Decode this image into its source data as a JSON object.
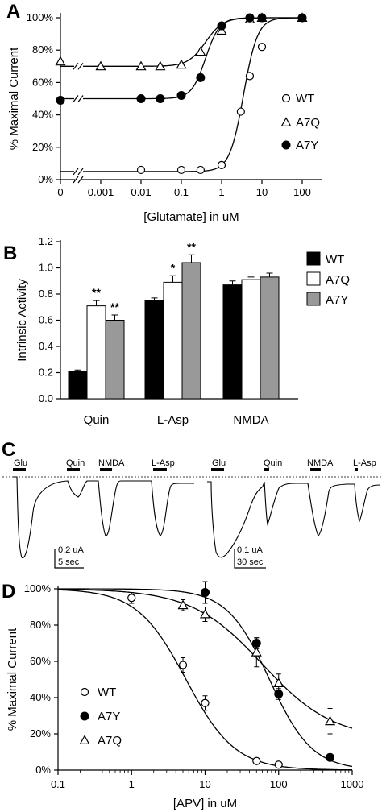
{
  "chart_data": [
    {
      "panel": "A",
      "type": "scatter",
      "xlabel": "[Glutamate] in uM",
      "ylabel": "% Maximal Current",
      "x_scale": "log",
      "x_ticks": [
        "0",
        "0.001",
        "0.01",
        "0.1",
        "1",
        "10",
        "100"
      ],
      "y_ticks": [
        "0%",
        "20%",
        "40%",
        "60%",
        "80%",
        "100%"
      ],
      "ylim": [
        0,
        100
      ],
      "legend_position": "right",
      "series": [
        {
          "name": "WT",
          "marker": "open-circle",
          "x": [
            0.01,
            0.1,
            0.3,
            1,
            3,
            5,
            10,
            100
          ],
          "y": [
            6,
            6,
            6,
            9,
            42,
            64,
            82,
            100
          ],
          "baseline": 5,
          "top": 100,
          "ec50": 3.5,
          "hill": 2.5
        },
        {
          "name": "A7Q",
          "marker": "open-triangle",
          "x": [
            0.001,
            0.01,
            0.03,
            0.1,
            0.3,
            1,
            5,
            10,
            100
          ],
          "y": [
            70,
            70,
            70,
            71,
            79,
            92,
            99,
            100,
            100
          ],
          "y_at_zero": 73,
          "baseline": 70,
          "top": 100,
          "ec50": 0.4,
          "hill": 2
        },
        {
          "name": "A7Y",
          "marker": "filled-circle",
          "x": [
            0.01,
            0.03,
            0.1,
            0.3,
            1,
            5,
            10,
            100
          ],
          "y": [
            50,
            50,
            52,
            63,
            95,
            100,
            100,
            100
          ],
          "y_at_zero": 49,
          "baseline": 50,
          "top": 100,
          "ec50": 0.4,
          "hill": 2.5
        }
      ]
    },
    {
      "panel": "B",
      "type": "bar",
      "ylabel": "Intrinsic Activity",
      "categories": [
        "Quin",
        "L-Asp",
        "NMDA"
      ],
      "ylim": [
        0,
        1.2
      ],
      "y_ticks": [
        "0.0",
        "0.2",
        "0.4",
        "0.6",
        "0.8",
        "1.0",
        "1.2"
      ],
      "legend_position": "right",
      "series": [
        {
          "name": "WT",
          "color": "#000000",
          "values": [
            0.21,
            0.75,
            0.87
          ],
          "errors": [
            0.01,
            0.02,
            0.03
          ],
          "sig": [
            "",
            "",
            ""
          ]
        },
        {
          "name": "A7Q",
          "color": "#ffffff",
          "values": [
            0.71,
            0.89,
            0.91
          ],
          "errors": [
            0.04,
            0.05,
            0.02
          ],
          "sig": [
            "**",
            "*",
            ""
          ]
        },
        {
          "name": "A7Y",
          "color": "#999999",
          "values": [
            0.6,
            1.04,
            0.93
          ],
          "errors": [
            0.04,
            0.06,
            0.03
          ],
          "sig": [
            "**",
            "**",
            ""
          ]
        }
      ]
    },
    {
      "panel": "C",
      "type": "traces",
      "left_labels": [
        "Glu",
        "Quin",
        "NMDA",
        "L-Asp"
      ],
      "right_labels": [
        "Glu",
        "Quin",
        "NMDA",
        "L-Asp"
      ],
      "left_scale": [
        "0.2 uA",
        "5 sec"
      ],
      "right_scale": [
        "0.1 uA",
        "30 sec"
      ]
    },
    {
      "panel": "D",
      "type": "scatter",
      "xlabel": "[APV] in uM",
      "ylabel": "% Maximal Current",
      "x_scale": "log",
      "xlim": [
        0.1,
        1000
      ],
      "x_ticks": [
        "0.1",
        "1",
        "10",
        "100",
        "1000"
      ],
      "y_ticks": [
        "0%",
        "20%",
        "40%",
        "60%",
        "80%",
        "100%"
      ],
      "ylim": [
        0,
        100
      ],
      "legend_position": "bottom-left",
      "series": [
        {
          "name": "WT",
          "marker": "open-circle",
          "x": [
            1,
            5,
            10,
            50,
            100
          ],
          "y": [
            95,
            58,
            37,
            5,
            3
          ],
          "errors": [
            3,
            4,
            4,
            0,
            0
          ],
          "ic50": 5.5,
          "hill": 1.3
        },
        {
          "name": "A7Y",
          "marker": "filled-circle",
          "x": [
            10,
            50,
            100,
            500
          ],
          "y": [
            98,
            70,
            42,
            7
          ],
          "errors": [
            6,
            3,
            3,
            0
          ],
          "ic50": 75,
          "hill": 1.5
        },
        {
          "name": "A7Q",
          "marker": "open-triangle",
          "x": [
            5,
            10,
            50,
            100,
            500
          ],
          "y": [
            91,
            86,
            65,
            48,
            27
          ],
          "errors": [
            3,
            4,
            8,
            5,
            7
          ],
          "ic50": 60,
          "hill": 0.9,
          "bottom": 17
        }
      ]
    }
  ]
}
